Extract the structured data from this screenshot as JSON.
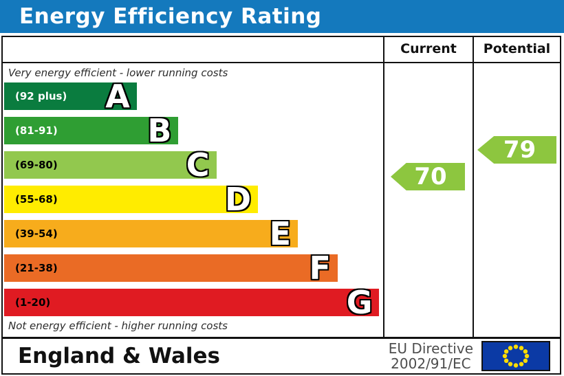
{
  "title": "Energy Efficiency Rating",
  "header": {
    "current_label": "Current",
    "potential_label": "Potential"
  },
  "captions": {
    "top": "Very energy efficient - lower running costs",
    "bottom": "Not energy efficient - higher running costs"
  },
  "chart_data": {
    "type": "bar",
    "title": "Energy Efficiency Rating",
    "bands": [
      {
        "letter": "A",
        "range_label": "(92 plus)",
        "range": [
          92,
          100
        ],
        "color": "#0a7c3f",
        "label_color": "#ffffff",
        "width_pct": 35
      },
      {
        "letter": "B",
        "range_label": "(81-91)",
        "range": [
          81,
          91
        ],
        "color": "#2f9e33",
        "label_color": "#ffffff",
        "width_pct": 46
      },
      {
        "letter": "C",
        "range_label": "(69-80)",
        "range": [
          69,
          80
        ],
        "color": "#92c84e",
        "label_color": "#000000",
        "width_pct": 56
      },
      {
        "letter": "D",
        "range_label": "(55-68)",
        "range": [
          55,
          68
        ],
        "color": "#ffec00",
        "label_color": "#000000",
        "width_pct": 67
      },
      {
        "letter": "E",
        "range_label": "(39-54)",
        "range": [
          39,
          54
        ],
        "color": "#f7ac1c",
        "label_color": "#000000",
        "width_pct": 77.5
      },
      {
        "letter": "F",
        "range_label": "(21-38)",
        "range": [
          21,
          38
        ],
        "color": "#ea6b25",
        "label_color": "#000000",
        "width_pct": 88
      },
      {
        "letter": "G",
        "range_label": "(1-20)",
        "range": [
          1,
          20
        ],
        "color": "#e01b22",
        "label_color": "#000000",
        "width_pct": 99
      }
    ],
    "current": {
      "value": 70,
      "band": "C",
      "arrow_color": "#8dc63f"
    },
    "potential": {
      "value": 79,
      "band": "C",
      "arrow_color": "#8dc63f"
    }
  },
  "footer": {
    "region": "England & Wales",
    "directive_line1": "EU Directive",
    "directive_line2": "2002/91/EC",
    "flag": "eu-flag"
  },
  "colors": {
    "title_bar": "#1479bd",
    "border": "#111111",
    "flag_blue": "#0b3aa5",
    "flag_star": "#ffdd00",
    "directive_text": "#4d4d4d"
  }
}
